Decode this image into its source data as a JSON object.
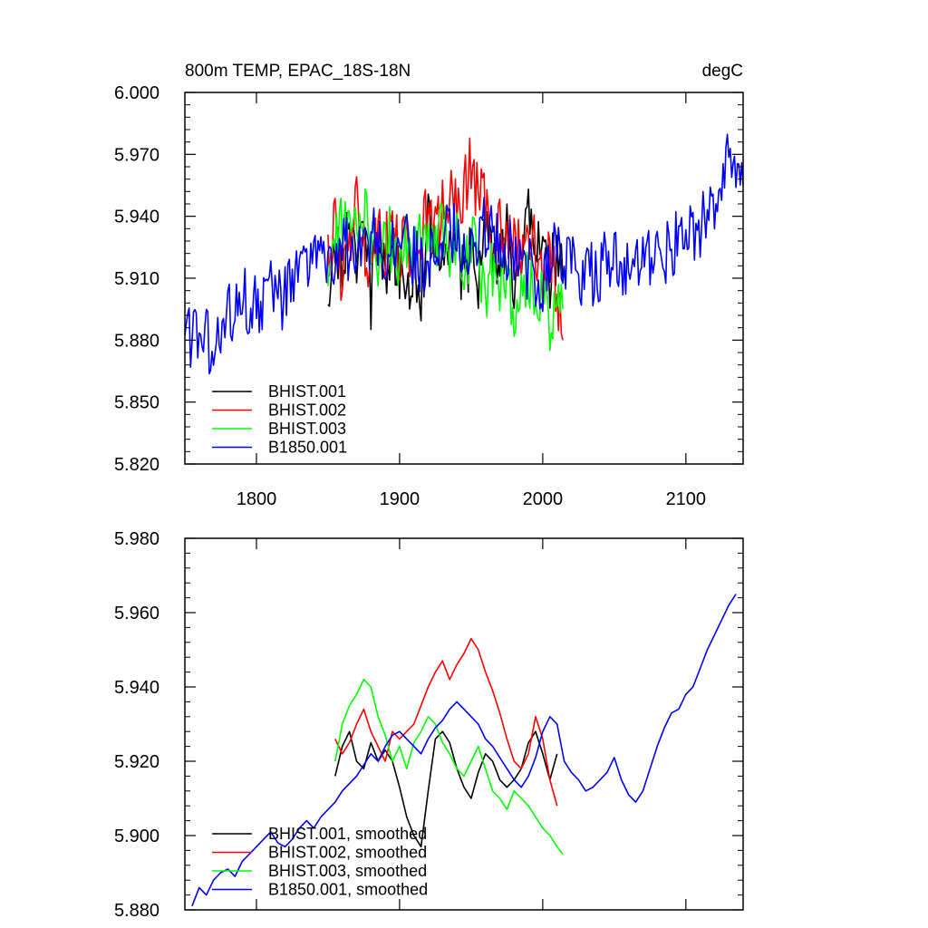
{
  "chart_data": [
    {
      "type": "line",
      "title": "800m TEMP, EPAC_18S-18N",
      "units": "degC",
      "xlim": [
        1750,
        2140
      ],
      "ylim": [
        5.82,
        6.0
      ],
      "xticks": [
        1800,
        1900,
        2000,
        2100
      ],
      "xtick_labels": [
        "1800",
        "1900",
        "2000",
        "2100"
      ],
      "yticks": [
        5.82,
        5.85,
        5.88,
        5.91,
        5.94,
        5.97,
        6.0
      ],
      "ytick_labels": [
        "5.820",
        "5.850",
        "5.880",
        "5.910",
        "5.940",
        "5.970",
        "6.000"
      ],
      "legend_position": "bottom-left",
      "series": [
        {
          "name": "BHIST.001",
          "color": "#000000",
          "x": [
            1850,
            1855,
            1860,
            1865,
            1870,
            1875,
            1880,
            1885,
            1890,
            1895,
            1900,
            1905,
            1910,
            1915,
            1920,
            1925,
            1930,
            1935,
            1940,
            1945,
            1950,
            1955,
            1960,
            1965,
            1970,
            1975,
            1980,
            1985,
            1990,
            1995,
            2000,
            2005,
            2010,
            2014
          ],
          "y": [
            5.905,
            5.93,
            5.915,
            5.94,
            5.92,
            5.93,
            5.9,
            5.935,
            5.915,
            5.925,
            5.91,
            5.9,
            5.92,
            5.905,
            5.935,
            5.93,
            5.925,
            5.92,
            5.93,
            5.905,
            5.925,
            5.91,
            5.935,
            5.92,
            5.915,
            5.93,
            5.905,
            5.925,
            5.94,
            5.935,
            5.92,
            5.91,
            5.925,
            5.91
          ]
        },
        {
          "name": "BHIST.002",
          "color": "#ff0000",
          "x": [
            1850,
            1855,
            1860,
            1865,
            1870,
            1875,
            1880,
            1885,
            1890,
            1895,
            1900,
            1905,
            1910,
            1915,
            1920,
            1925,
            1930,
            1935,
            1940,
            1945,
            1950,
            1955,
            1960,
            1965,
            1970,
            1975,
            1980,
            1985,
            1990,
            1995,
            2000,
            2005,
            2010,
            2014
          ],
          "y": [
            5.92,
            5.935,
            5.91,
            5.925,
            5.945,
            5.93,
            5.915,
            5.94,
            5.925,
            5.935,
            5.92,
            5.93,
            5.915,
            5.935,
            5.94,
            5.93,
            5.945,
            5.95,
            5.94,
            5.955,
            5.965,
            5.95,
            5.945,
            5.935,
            5.94,
            5.925,
            5.93,
            5.92,
            5.935,
            5.925,
            5.91,
            5.92,
            5.905,
            5.88
          ]
        },
        {
          "name": "BHIST.003",
          "color": "#00ff00",
          "x": [
            1850,
            1855,
            1860,
            1865,
            1870,
            1875,
            1880,
            1885,
            1890,
            1895,
            1900,
            1905,
            1910,
            1915,
            1920,
            1925,
            1930,
            1935,
            1940,
            1945,
            1950,
            1955,
            1960,
            1965,
            1970,
            1975,
            1980,
            1985,
            1990,
            1995,
            2000,
            2005,
            2010,
            2014
          ],
          "y": [
            5.915,
            5.93,
            5.935,
            5.94,
            5.935,
            5.945,
            5.93,
            5.92,
            5.935,
            5.925,
            5.915,
            5.93,
            5.92,
            5.935,
            5.925,
            5.93,
            5.94,
            5.92,
            5.93,
            5.915,
            5.925,
            5.92,
            5.905,
            5.915,
            5.9,
            5.92,
            5.88,
            5.905,
            5.91,
            5.9,
            5.905,
            5.89,
            5.9,
            5.895
          ]
        },
        {
          "name": "B1850.001",
          "color": "#0000ff",
          "x": [
            1750,
            1760,
            1770,
            1780,
            1790,
            1800,
            1810,
            1820,
            1830,
            1840,
            1850,
            1860,
            1870,
            1880,
            1890,
            1900,
            1910,
            1920,
            1930,
            1940,
            1950,
            1960,
            1970,
            1980,
            1990,
            2000,
            2010,
            2020,
            2030,
            2040,
            2050,
            2060,
            2070,
            2080,
            2090,
            2100,
            2110,
            2120,
            2130,
            2140
          ],
          "y": [
            5.88,
            5.885,
            5.875,
            5.89,
            5.9,
            5.895,
            5.905,
            5.9,
            5.91,
            5.915,
            5.92,
            5.925,
            5.92,
            5.93,
            5.925,
            5.93,
            5.92,
            5.915,
            5.935,
            5.93,
            5.925,
            5.935,
            5.93,
            5.92,
            5.915,
            5.91,
            5.925,
            5.915,
            5.91,
            5.915,
            5.92,
            5.91,
            5.915,
            5.92,
            5.925,
            5.93,
            5.935,
            5.94,
            5.975,
            5.955
          ]
        }
      ]
    },
    {
      "type": "line",
      "xlim": [
        1750,
        2140
      ],
      "ylim": [
        5.88,
        5.98
      ],
      "xticks": [
        1800,
        1900,
        2000,
        2100
      ],
      "yticks": [
        5.88,
        5.9,
        5.92,
        5.94,
        5.96,
        5.98
      ],
      "ytick_labels": [
        "5.880",
        "5.900",
        "5.920",
        "5.940",
        "5.960",
        "5.980"
      ],
      "legend_position": "bottom-left",
      "series": [
        {
          "name": "BHIST.001, smoothed",
          "color": "#000000",
          "x": [
            1855,
            1860,
            1865,
            1870,
            1875,
            1880,
            1885,
            1890,
            1895,
            1900,
            1905,
            1910,
            1915,
            1920,
            1925,
            1930,
            1935,
            1940,
            1945,
            1950,
            1955,
            1960,
            1965,
            1970,
            1975,
            1980,
            1985,
            1990,
            1995,
            2000,
            2005,
            2010
          ],
          "y": [
            5.916,
            5.924,
            5.928,
            5.92,
            5.918,
            5.925,
            5.92,
            5.923,
            5.92,
            5.913,
            5.905,
            5.9,
            5.897,
            5.912,
            5.926,
            5.928,
            5.925,
            5.918,
            5.913,
            5.91,
            5.917,
            5.922,
            5.92,
            5.915,
            5.913,
            5.915,
            5.918,
            5.925,
            5.928,
            5.922,
            5.915,
            5.922
          ]
        },
        {
          "name": "BHIST.002, smoothed",
          "color": "#ff0000",
          "x": [
            1855,
            1860,
            1865,
            1870,
            1875,
            1880,
            1885,
            1890,
            1895,
            1900,
            1905,
            1910,
            1915,
            1920,
            1925,
            1930,
            1935,
            1940,
            1945,
            1950,
            1955,
            1960,
            1965,
            1970,
            1975,
            1980,
            1985,
            1990,
            1995,
            2000,
            2005,
            2010
          ],
          "y": [
            5.926,
            5.922,
            5.925,
            5.93,
            5.934,
            5.928,
            5.924,
            5.92,
            5.928,
            5.926,
            5.928,
            5.93,
            5.935,
            5.94,
            5.944,
            5.947,
            5.942,
            5.946,
            5.949,
            5.953,
            5.95,
            5.944,
            5.939,
            5.933,
            5.926,
            5.92,
            5.918,
            5.922,
            5.932,
            5.926,
            5.915,
            5.908
          ]
        },
        {
          "name": "BHIST.003, smoothed",
          "color": "#00ff00",
          "x": [
            1855,
            1860,
            1865,
            1870,
            1875,
            1880,
            1885,
            1890,
            1895,
            1900,
            1905,
            1910,
            1915,
            1920,
            1925,
            1930,
            1935,
            1940,
            1945,
            1950,
            1955,
            1960,
            1965,
            1970,
            1975,
            1980,
            1985,
            1990,
            1995,
            2000,
            2005,
            2010,
            2014
          ],
          "y": [
            5.92,
            5.93,
            5.935,
            5.938,
            5.942,
            5.94,
            5.932,
            5.927,
            5.92,
            5.924,
            5.918,
            5.925,
            5.928,
            5.932,
            5.93,
            5.925,
            5.922,
            5.918,
            5.916,
            5.92,
            5.924,
            5.918,
            5.912,
            5.91,
            5.907,
            5.912,
            5.91,
            5.908,
            5.905,
            5.902,
            5.9,
            5.897,
            5.895
          ]
        },
        {
          "name": "B1850.001, smoothed",
          "color": "#0000ff",
          "x": [
            1755,
            1760,
            1765,
            1770,
            1775,
            1780,
            1785,
            1790,
            1795,
            1800,
            1805,
            1810,
            1815,
            1820,
            1825,
            1830,
            1835,
            1840,
            1845,
            1850,
            1855,
            1860,
            1865,
            1870,
            1875,
            1880,
            1885,
            1890,
            1895,
            1900,
            1905,
            1910,
            1915,
            1920,
            1925,
            1930,
            1935,
            1940,
            1945,
            1950,
            1955,
            1960,
            1965,
            1970,
            1975,
            1980,
            1985,
            1990,
            1995,
            2000,
            2005,
            2010,
            2015,
            2020,
            2025,
            2030,
            2035,
            2040,
            2045,
            2050,
            2055,
            2060,
            2065,
            2070,
            2075,
            2080,
            2085,
            2090,
            2095,
            2100,
            2105,
            2110,
            2115,
            2120,
            2125,
            2130,
            2135
          ],
          "y": [
            5.881,
            5.886,
            5.884,
            5.888,
            5.89,
            5.891,
            5.889,
            5.893,
            5.895,
            5.897,
            5.899,
            5.901,
            5.898,
            5.897,
            5.899,
            5.902,
            5.904,
            5.902,
            5.905,
            5.907,
            5.909,
            5.912,
            5.914,
            5.916,
            5.919,
            5.922,
            5.92,
            5.924,
            5.927,
            5.928,
            5.926,
            5.924,
            5.922,
            5.926,
            5.929,
            5.931,
            5.934,
            5.936,
            5.934,
            5.932,
            5.93,
            5.926,
            5.924,
            5.921,
            5.918,
            5.915,
            5.913,
            5.916,
            5.921,
            5.928,
            5.932,
            5.93,
            5.92,
            5.917,
            5.915,
            5.912,
            5.913,
            5.915,
            5.917,
            5.921,
            5.915,
            5.911,
            5.909,
            5.912,
            5.918,
            5.924,
            5.929,
            5.933,
            5.934,
            5.938,
            5.94,
            5.945,
            5.95,
            5.954,
            5.958,
            5.962,
            5.965
          ]
        }
      ]
    }
  ]
}
